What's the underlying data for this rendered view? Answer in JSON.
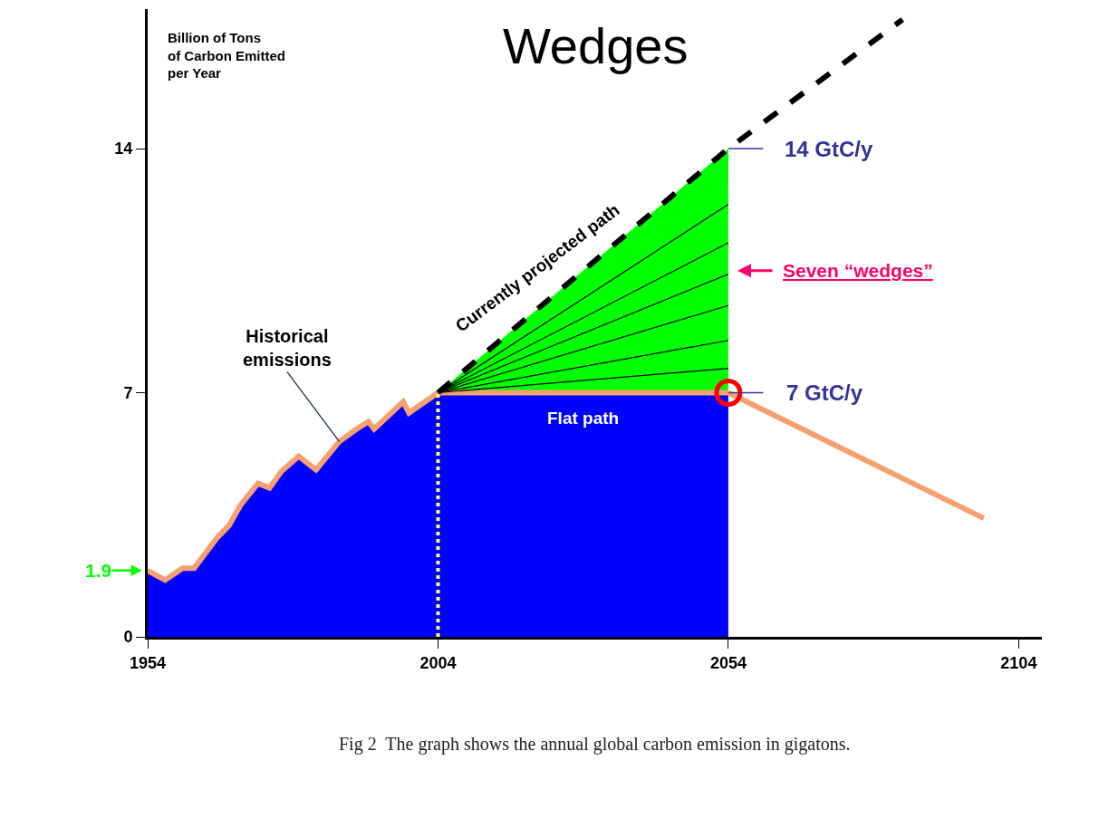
{
  "chart_data": {
    "type": "area",
    "title": "Wedges",
    "ylabel": "Billion of Tons of Carbon Emitted per Year",
    "xlim": [
      1954,
      2108
    ],
    "ylim": [
      0,
      18
    ],
    "xticks": [
      1954,
      2004,
      2054,
      2104
    ],
    "yticks": [
      0,
      7,
      14
    ],
    "legend": false,
    "series": [
      {
        "color": "#0000ff",
        "x": [
          1954,
          1957,
          1960,
          1962,
          1966,
          1968,
          1970,
          1973,
          1975,
          1977,
          1980,
          1983,
          1987,
          1990,
          1992,
          1993,
          1998,
          1999,
          2004,
          2054
        ],
        "values": [
          1.9,
          1.63,
          1.97,
          1.97,
          2.85,
          3.19,
          3.78,
          4.4,
          4.27,
          4.74,
          5.18,
          4.79,
          5.6,
          5.96,
          6.17,
          5.96,
          6.74,
          6.42,
          7,
          7
        ]
      },
      {
        "type": "line",
        "color": "#f4a070",
        "x": [
          2004,
          2054
        ],
        "values": [
          7,
          7
        ]
      },
      {
        "color": "#00ff00",
        "x": [
          2004,
          2054
        ],
        "values": [
          7,
          14
        ]
      },
      {
        "type": "line",
        "color": "#000000",
        "x": [
          2004,
          2054
        ],
        "values": [
          7,
          7.7
        ]
      },
      {
        "type": "line",
        "color": "#000000",
        "x": [
          2004,
          2054
        ],
        "values": [
          7,
          8.5
        ]
      },
      {
        "type": "line",
        "color": "#000000",
        "x": [
          2004,
          2054
        ],
        "values": [
          7,
          9.5
        ]
      },
      {
        "type": "line",
        "color": "#000000",
        "x": [
          2004,
          2054
        ],
        "values": [
          7,
          10.4
        ]
      },
      {
        "type": "line",
        "color": "#000000",
        "x": [
          2004,
          2054
        ],
        "values": [
          7,
          11.3
        ]
      },
      {
        "type": "line",
        "color": "#000000",
        "x": [
          2004,
          2054
        ],
        "values": [
          7,
          12.4
        ]
      },
      {
        "type": "line",
        "color": "#f4a070",
        "x": [
          1954,
          1957,
          1960,
          1962,
          1966,
          1968,
          1970,
          1973,
          1975,
          1977,
          1980,
          1983,
          1987,
          1990,
          1992,
          1993,
          1998,
          1999,
          2004
        ],
        "values": [
          1.9,
          1.63,
          1.97,
          1.97,
          2.85,
          3.19,
          3.78,
          4.4,
          4.27,
          4.74,
          5.18,
          4.79,
          5.6,
          5.96,
          6.17,
          5.96,
          6.74,
          6.42,
          7
        ]
      },
      {
        "type": "line",
        "color": "#000000",
        "line_style": "dashed",
        "x": [
          2004,
          2054,
          2084
        ],
        "values": [
          7,
          14,
          17.7
        ]
      },
      {
        "type": "line",
        "color": "#f4a070",
        "x": [
          2054,
          2098
        ],
        "values": [
          7,
          3.4
        ]
      },
      {
        "type": "scatter",
        "color": "#ff0000",
        "marker": "circle",
        "x": [
          2054
        ],
        "values": [
          7
        ]
      }
    ],
    "ref_lines": [
      {
        "axis": "x",
        "value": 2004,
        "color": "#ffff66",
        "line_style": "dotted"
      }
    ],
    "annotations": [
      {
        "text": "Historical emissions",
        "x": 1987,
        "y": 5.6
      },
      {
        "text": "Currently projected path",
        "x": 2024,
        "y": 9.8
      },
      {
        "text": "Flat path",
        "x": 2029,
        "y": 7
      },
      {
        "text": "14 GtC/y",
        "x": 2054,
        "y": 14
      },
      {
        "text": "7 GtC/y",
        "x": 2054,
        "y": 7
      },
      {
        "text": "Seven “wedges”",
        "x": 2054,
        "y": 10.5
      },
      {
        "text": "1.9",
        "x": 1954,
        "y": 1.9
      },
      "Fig 2  The graph shows the annual global carbon emission in gigatons."
    ]
  }
}
